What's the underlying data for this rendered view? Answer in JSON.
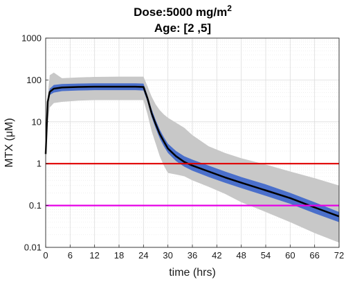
{
  "chart_data": {
    "type": "line",
    "title_line1": "Dose:5000 mg/m",
    "title_sup": "2",
    "title_line2": "Age: [2 ,5]",
    "xlabel": "time (hrs)",
    "ylabel": "MTX (μM)",
    "xlim": [
      0,
      72
    ],
    "ylim": [
      0.01,
      1000
    ],
    "yscale": "log",
    "grid": true,
    "xticks": [
      "0",
      "6",
      "12",
      "18",
      "24",
      "30",
      "36",
      "42",
      "48",
      "54",
      "60",
      "66",
      "72"
    ],
    "yticks": [
      "0.01",
      "0.1",
      "1",
      "10",
      "100",
      "1000"
    ],
    "bands": [
      {
        "color": "#c8c8c8",
        "x": [
          0,
          0.5,
          1,
          2,
          4,
          8,
          12,
          18,
          22,
          24,
          25,
          26,
          27,
          28,
          29,
          30,
          32,
          34,
          36,
          40,
          44,
          48,
          54,
          60,
          66,
          72
        ],
        "upper": [
          2.5,
          40,
          130,
          150,
          110,
          115,
          118,
          120,
          120,
          120,
          70,
          40,
          26,
          19,
          15,
          12.5,
          9.5,
          7.2,
          4.8,
          2.6,
          1.8,
          1.35,
          0.95,
          0.65,
          0.45,
          0.3
        ],
        "lower": [
          1.1,
          10,
          22,
          28,
          30,
          32,
          33,
          33,
          33,
          33,
          15,
          6,
          3,
          1.5,
          0.9,
          0.6,
          0.55,
          0.5,
          0.4,
          0.28,
          0.19,
          0.12,
          0.07,
          0.04,
          0.022,
          0.013
        ]
      },
      {
        "color": "#4a6fcb",
        "x": [
          0,
          0.5,
          1,
          2,
          4,
          8,
          12,
          18,
          22,
          24,
          25,
          26,
          27,
          28,
          29,
          30,
          32,
          34,
          36,
          40,
          44,
          48,
          54,
          60,
          66,
          72
        ],
        "upper": [
          1.9,
          33,
          62,
          76,
          80,
          82,
          83,
          83,
          83,
          82,
          42,
          20,
          11,
          6.5,
          4.3,
          3.0,
          2.0,
          1.5,
          1.25,
          0.9,
          0.65,
          0.48,
          0.32,
          0.2,
          0.12,
          0.07
        ],
        "lower": [
          1.5,
          26,
          44,
          50,
          54,
          56,
          57,
          57,
          57,
          56,
          30,
          13,
          7,
          4,
          2.6,
          1.8,
          1.15,
          0.85,
          0.68,
          0.48,
          0.35,
          0.26,
          0.17,
          0.11,
          0.065,
          0.04
        ]
      }
    ],
    "series": [
      {
        "color": "#000000",
        "x": [
          0,
          0.5,
          1,
          2,
          4,
          8,
          12,
          18,
          22,
          24,
          25,
          26,
          27,
          28,
          29,
          30,
          32,
          34,
          36,
          40,
          44,
          48,
          54,
          60,
          66,
          72
        ],
        "values": [
          1.7,
          30,
          52,
          62,
          66,
          68,
          69,
          69,
          69,
          68,
          36,
          16,
          8.8,
          5.1,
          3.4,
          2.3,
          1.5,
          1.1,
          0.9,
          0.65,
          0.47,
          0.35,
          0.23,
          0.15,
          0.09,
          0.055
        ]
      }
    ],
    "hlines": [
      {
        "y": 1,
        "color": "#e00000"
      },
      {
        "y": 0.1,
        "color": "#e600e6"
      }
    ]
  }
}
